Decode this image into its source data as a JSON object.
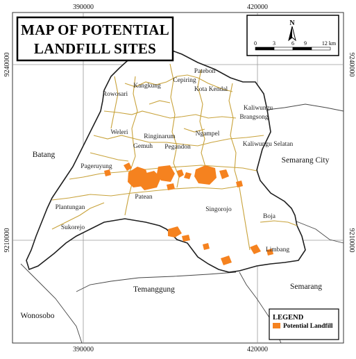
{
  "map": {
    "title_line1": "MAP OF POTENTIAL",
    "title_line2": "LANDFILL SITES",
    "grid": {
      "top": [
        "390000",
        "420000"
      ],
      "bottom": [
        "390000",
        "420000"
      ],
      "left": [
        "9240000",
        "9210000"
      ],
      "right": [
        "9240000",
        "9210000"
      ]
    },
    "north_label": "N",
    "scale": {
      "ticks": [
        "0",
        "3",
        "6",
        "9"
      ],
      "last": "12 km"
    },
    "districts": {
      "patebon": "Patebon",
      "cepiring": "Cepiring",
      "kangkung": "Kangkung",
      "rowosari": "Rowosari",
      "kota_kendal": "Kota Kendal",
      "kaliwungu": "Kaliwungu",
      "brangsong": "Brangsong",
      "ngampel": "Ngampel",
      "ringinarum": "Ringinarum",
      "weleri": "Weleri",
      "gemuh": "Gemuh",
      "pegandon": "Pegandon",
      "kaliwungu_selatan": "Kaliwungu Selatan",
      "pageruyung": "Pageruyung",
      "patean": "Patean",
      "plantungan": "Plantungan",
      "sukorejo": "Sukorejo",
      "singorojo": "Singorojo",
      "boja": "Boja",
      "limbang": "Limbang"
    },
    "regions": {
      "batang": "Batang",
      "semarang_city": "Semarang City",
      "temanggung": "Temanggung",
      "semarang": "Semarang",
      "wonosobo": "Wonosobo"
    },
    "legend": {
      "title": "LEGEND",
      "item": "Potential Landfill"
    },
    "colors": {
      "landfill": "#f5821f",
      "district_border": "#c8a23a",
      "outline": "#222222",
      "grid": "#999999"
    }
  }
}
